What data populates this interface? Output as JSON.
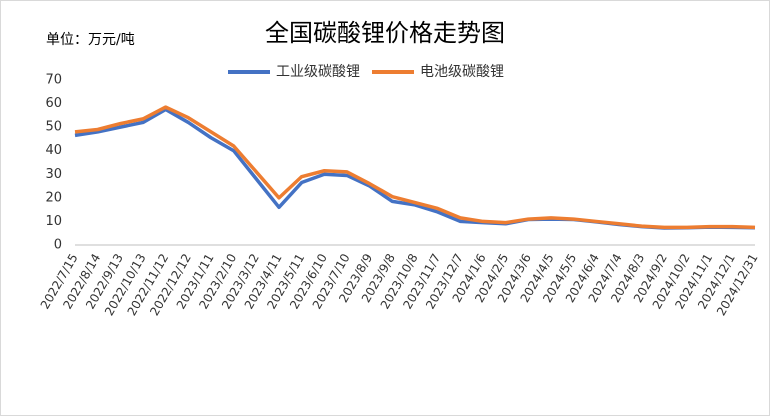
{
  "chart_data": {
    "type": "line",
    "title": "全国碳酸锂价格走势图",
    "unit_label": "单位：万元/吨",
    "categories": [
      "2022/7/15",
      "2022/8/14",
      "2022/9/13",
      "2022/10/13",
      "2022/11/12",
      "2022/12/12",
      "2023/1/11",
      "2023/2/10",
      "2023/3/12",
      "2023/4/11",
      "2023/5/11",
      "2023/6/10",
      "2023/7/10",
      "2023/8/9",
      "2023/9/8",
      "2023/10/8",
      "2023/11/7",
      "2023/12/7",
      "2024/1/6",
      "2024/2/5",
      "2024/3/6",
      "2024/4/5",
      "2024/5/5",
      "2024/6/4",
      "2024/7/4",
      "2024/8/3",
      "2024/9/2",
      "2024/10/2",
      "2024/11/1",
      "2024/12/1",
      "2024/12/31"
    ],
    "series": [
      {
        "name": "工业级碳酸锂",
        "color": "#4472c4",
        "values": [
          46.5,
          48,
          50,
          52,
          57.5,
          52,
          45.5,
          40,
          28,
          16,
          26.5,
          30,
          29.5,
          25,
          18.5,
          17,
          14,
          10,
          9.5,
          9,
          10.8,
          11,
          10.8,
          9.8,
          8.7,
          7.8,
          7.2,
          7.3,
          7.6,
          7.5,
          7.3
        ]
      },
      {
        "name": "电池级碳酸锂",
        "color": "#ed7d31",
        "values": [
          48,
          49,
          51.5,
          53.5,
          58.5,
          54,
          48,
          42,
          31,
          20,
          29,
          31.5,
          31,
          26,
          20.5,
          18,
          15.5,
          11.5,
          10,
          9.5,
          11,
          11.5,
          11,
          10,
          9,
          8,
          7.5,
          7.5,
          7.8,
          7.8,
          7.5
        ]
      }
    ],
    "ylim": [
      0,
      70
    ],
    "yticks": [
      0,
      10,
      20,
      30,
      40,
      50,
      60,
      70
    ],
    "grid": false
  }
}
